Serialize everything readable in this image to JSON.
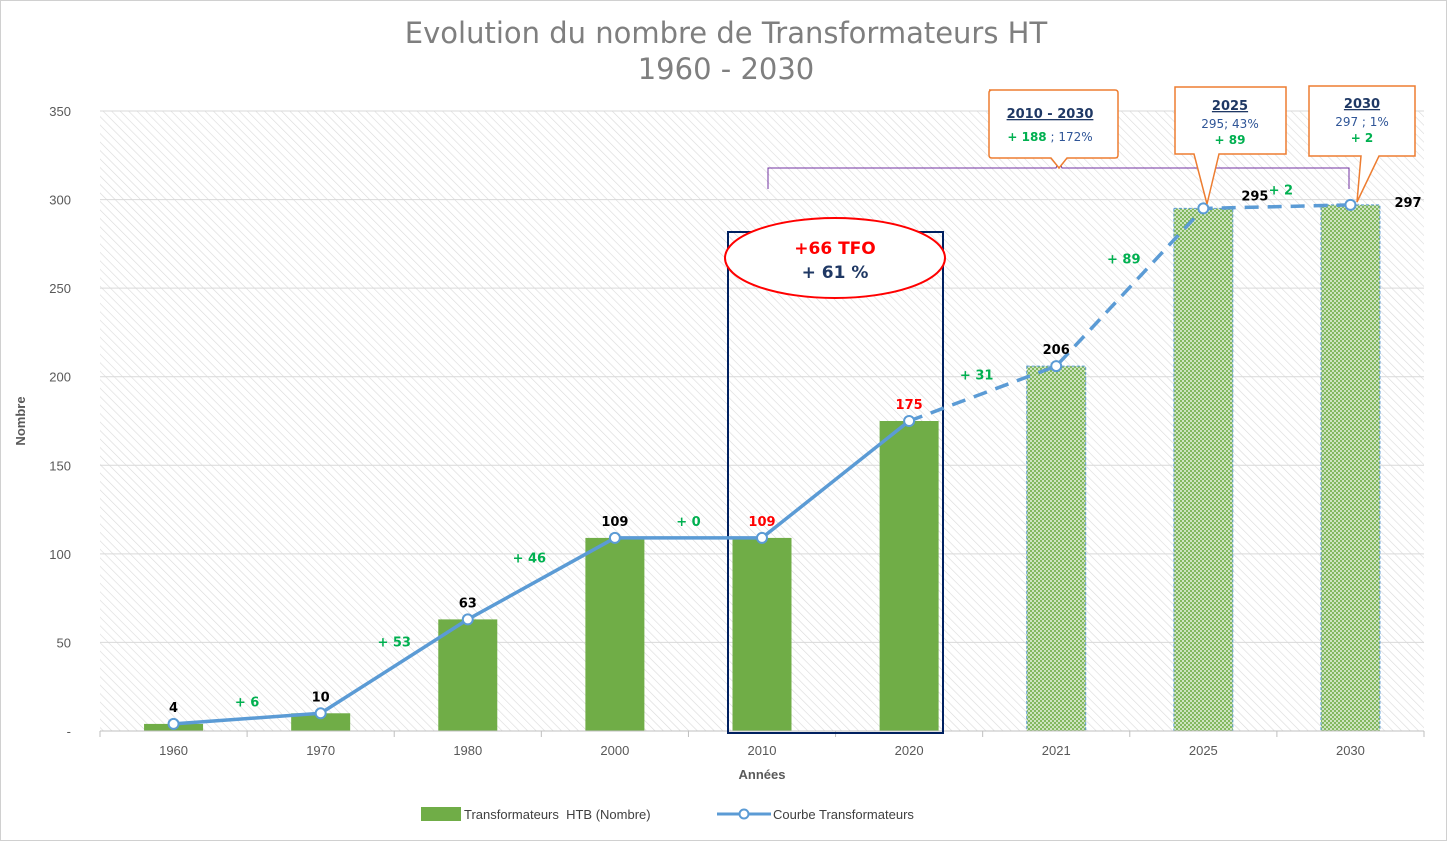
{
  "chart_data": {
    "type": "bar",
    "title": "Evolution du nombre de Transformateurs HT",
    "subtitle": "1960 - 2030",
    "xlabel": "Années",
    "ylabel": "Nombre",
    "ylim": [
      0,
      350
    ],
    "yticks": [
      "-",
      "50",
      "100",
      "150",
      "200",
      "250",
      "300",
      "350"
    ],
    "grid": true,
    "legend_position": "bottom",
    "categories": [
      "1960",
      "1970",
      "1980",
      "2000",
      "2010",
      "2020",
      "2021",
      "2025",
      "2030"
    ],
    "series": [
      {
        "name": "Transformateurs  HTB (Nombre)",
        "type": "bar",
        "color": "#70ad47",
        "values": [
          4,
          10,
          63,
          109,
          109,
          175,
          206,
          295,
          297
        ],
        "projected": [
          false,
          false,
          false,
          false,
          false,
          false,
          true,
          true,
          true
        ]
      },
      {
        "name": "Courbe Transformateurs",
        "type": "line",
        "color": "#5b9bd5",
        "values": [
          4,
          10,
          63,
          109,
          109,
          175,
          206,
          295,
          297
        ],
        "dashed_from_index": 5
      }
    ],
    "data_labels": [
      {
        "text": "4",
        "color": "#000000"
      },
      {
        "text": "10",
        "color": "#000000"
      },
      {
        "text": "63",
        "color": "#000000"
      },
      {
        "text": "109",
        "color": "#000000"
      },
      {
        "text": "109",
        "color": "#ff0000"
      },
      {
        "text": "175",
        "color": "#ff0000"
      },
      {
        "text": "206",
        "color": "#000000"
      },
      {
        "text": "295",
        "color": "#000000"
      },
      {
        "text": "297",
        "color": "#000000"
      }
    ],
    "deltas": [
      "+ 6",
      "+ 53",
      "+ 46",
      "+ 0",
      "",
      "+ 31",
      "+ 89",
      "+ 2"
    ],
    "highlight": {
      "categories": [
        "2010",
        "2020"
      ],
      "line1": "+66 TFO",
      "line2": "+ 61 %"
    },
    "callouts": [
      {
        "title": "2010 - 2030",
        "green": "+ 188",
        "rest": " ; 172%"
      },
      {
        "title": "2025",
        "line2": "295; 43%",
        "line3": "+ 89"
      },
      {
        "title": "2030",
        "line2": "297 ; 1%",
        "line3": "+ 2"
      }
    ]
  }
}
